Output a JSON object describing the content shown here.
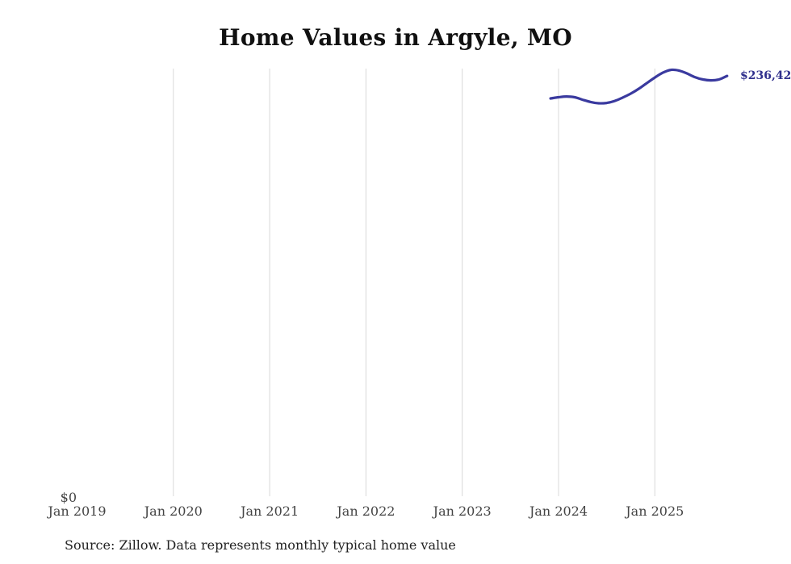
{
  "page": {
    "title": "Home Values in Argyle, MO"
  },
  "footer": {
    "source": "Source: Zillow. Data represents monthly typical home value"
  },
  "colors": {
    "line": "#3a3a9f",
    "end_label": "#30308d",
    "gridline": "#d8d8d8",
    "axis_text": "#444444",
    "title_text": "#111111",
    "background": "#ffffff"
  },
  "chart_data": {
    "type": "line",
    "title": "Home Values in Argyle, MO",
    "xlabel": "",
    "ylabel": "",
    "x_tick_labels": [
      "Jan 2019",
      "Jan 2020",
      "Jan 2021",
      "Jan 2022",
      "Jan 2023",
      "Jan 2024",
      "Jan 2025"
    ],
    "y_tick_labels": [
      "$0"
    ],
    "end_label": "$236,42",
    "ylim": [
      0,
      240500
    ],
    "grid": "vertical-only",
    "legend": "none",
    "series": [
      {
        "name": "Monthly typical home value",
        "color": "#3a3a9f",
        "x": [
          "2023-12",
          "2024-01",
          "2024-02",
          "2024-03",
          "2024-04",
          "2024-05",
          "2024-06",
          "2024-07",
          "2024-08",
          "2024-09",
          "2024-10",
          "2024-11",
          "2024-12",
          "2025-01",
          "2025-02",
          "2025-03",
          "2025-04",
          "2025-05",
          "2025-06",
          "2025-07",
          "2025-08",
          "2025-09",
          "2025-10"
        ],
        "values": [
          223800,
          224500,
          224900,
          224500,
          223100,
          221800,
          221100,
          221300,
          222400,
          224300,
          226500,
          229200,
          232400,
          235500,
          238200,
          239800,
          239400,
          237800,
          235700,
          234400,
          233900,
          234400,
          236400
        ]
      }
    ]
  }
}
